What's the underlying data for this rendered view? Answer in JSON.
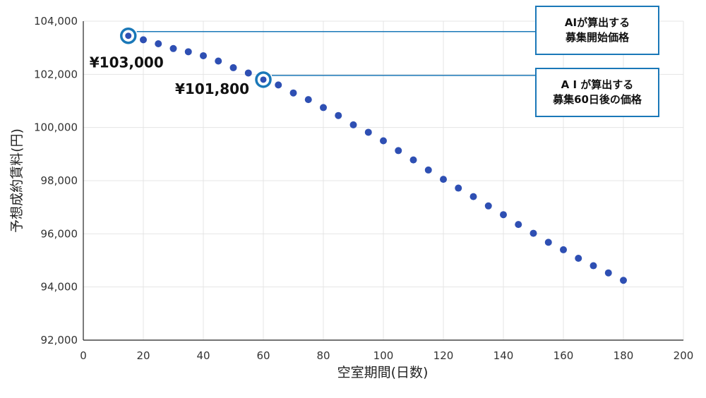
{
  "chart_data": {
    "type": "scatter",
    "xlabel": "空室期間(日数)",
    "ylabel": "予想成約賃料(円)",
    "xlim": [
      0,
      200
    ],
    "ylim": [
      92000,
      104000
    ],
    "x_ticks": [
      0,
      20,
      40,
      60,
      80,
      100,
      120,
      140,
      160,
      180,
      200
    ],
    "y_ticks": [
      92000,
      94000,
      96000,
      98000,
      100000,
      102000,
      104000
    ],
    "x_tick_labels": [
      "0",
      "20",
      "40",
      "60",
      "80",
      "100",
      "120",
      "140",
      "160",
      "180",
      "200"
    ],
    "y_tick_labels": [
      "92,000",
      "94,000",
      "96,000",
      "98,000",
      "100,000",
      "102,000",
      "104,000"
    ],
    "grid": true,
    "series": [
      {
        "color": "#2e4fb3",
        "points": [
          {
            "x": 15,
            "y": 103450
          },
          {
            "x": 20,
            "y": 103300
          },
          {
            "x": 25,
            "y": 103150
          },
          {
            "x": 30,
            "y": 102970
          },
          {
            "x": 35,
            "y": 102850
          },
          {
            "x": 40,
            "y": 102700
          },
          {
            "x": 45,
            "y": 102500
          },
          {
            "x": 50,
            "y": 102250
          },
          {
            "x": 55,
            "y": 102050
          },
          {
            "x": 60,
            "y": 101800
          },
          {
            "x": 65,
            "y": 101600
          },
          {
            "x": 70,
            "y": 101300
          },
          {
            "x": 75,
            "y": 101050
          },
          {
            "x": 80,
            "y": 100750
          },
          {
            "x": 85,
            "y": 100450
          },
          {
            "x": 90,
            "y": 100100
          },
          {
            "x": 95,
            "y": 99820
          },
          {
            "x": 100,
            "y": 99500
          },
          {
            "x": 105,
            "y": 99130
          },
          {
            "x": 110,
            "y": 98780
          },
          {
            "x": 115,
            "y": 98400
          },
          {
            "x": 120,
            "y": 98050
          },
          {
            "x": 125,
            "y": 97720
          },
          {
            "x": 130,
            "y": 97400
          },
          {
            "x": 135,
            "y": 97050
          },
          {
            "x": 140,
            "y": 96720
          },
          {
            "x": 145,
            "y": 96350
          },
          {
            "x": 150,
            "y": 96020
          },
          {
            "x": 155,
            "y": 95680
          },
          {
            "x": 160,
            "y": 95400
          },
          {
            "x": 165,
            "y": 95080
          },
          {
            "x": 170,
            "y": 94800
          },
          {
            "x": 175,
            "y": 94530
          },
          {
            "x": 180,
            "y": 94250
          }
        ]
      }
    ],
    "highlights": [
      {
        "x": 15,
        "y": 103450,
        "value_label": "¥103,000",
        "callout_lines": [
          "AIが算出する",
          "募集開始価格"
        ]
      },
      {
        "x": 60,
        "y": 101800,
        "value_label": "¥101,800",
        "callout_lines": [
          "A I が算出する",
          "募集60日後の価格"
        ]
      }
    ],
    "colors": {
      "points": "#2e4fb3",
      "highlight_ring": "#1a78b8",
      "callout_border": "#1a78b8",
      "grid": "#e4e4e4",
      "axis": "#222222"
    }
  }
}
